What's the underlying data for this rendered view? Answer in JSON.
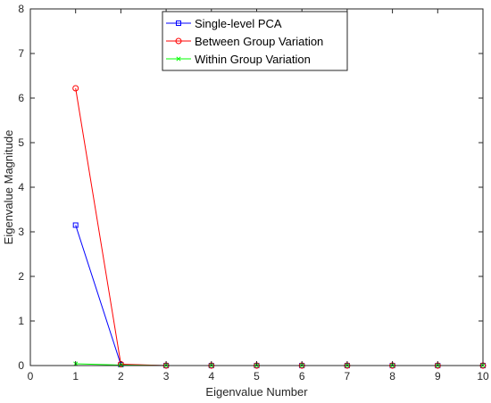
{
  "chart_data": {
    "type": "line",
    "title": "",
    "xlabel": "Eigenvalue Number",
    "ylabel": "Eigenvalue Magnitude",
    "xlim": [
      0,
      10
    ],
    "ylim": [
      0,
      8
    ],
    "xticks": [
      "0",
      "1",
      "2",
      "3",
      "4",
      "5",
      "6",
      "7",
      "8",
      "9",
      "10"
    ],
    "yticks": [
      "0",
      "1",
      "2",
      "3",
      "4",
      "5",
      "6",
      "7",
      "8"
    ],
    "grid": false,
    "legend_position": "top-center",
    "x": [
      1,
      2,
      3,
      4,
      5,
      6,
      7,
      8,
      9,
      10
    ],
    "series": [
      {
        "name": "Single-level PCA",
        "color": "#0000ff",
        "marker": "square",
        "values": [
          3.15,
          0.02,
          0.0,
          0.0,
          0.0,
          0.0,
          0.0,
          0.0,
          0.0,
          0.0
        ]
      },
      {
        "name": "Between Group Variation",
        "color": "#ff0000",
        "marker": "circle",
        "values": [
          6.22,
          0.03,
          0.0,
          0.0,
          0.0,
          0.0,
          0.0,
          0.0,
          0.0,
          0.0
        ]
      },
      {
        "name": "Within Group Variation",
        "color": "#00ff00",
        "marker": "x",
        "values": [
          0.04,
          0.01,
          0.0,
          0.0,
          0.0,
          0.0,
          0.0,
          0.0,
          0.0,
          0.0
        ]
      }
    ]
  }
}
